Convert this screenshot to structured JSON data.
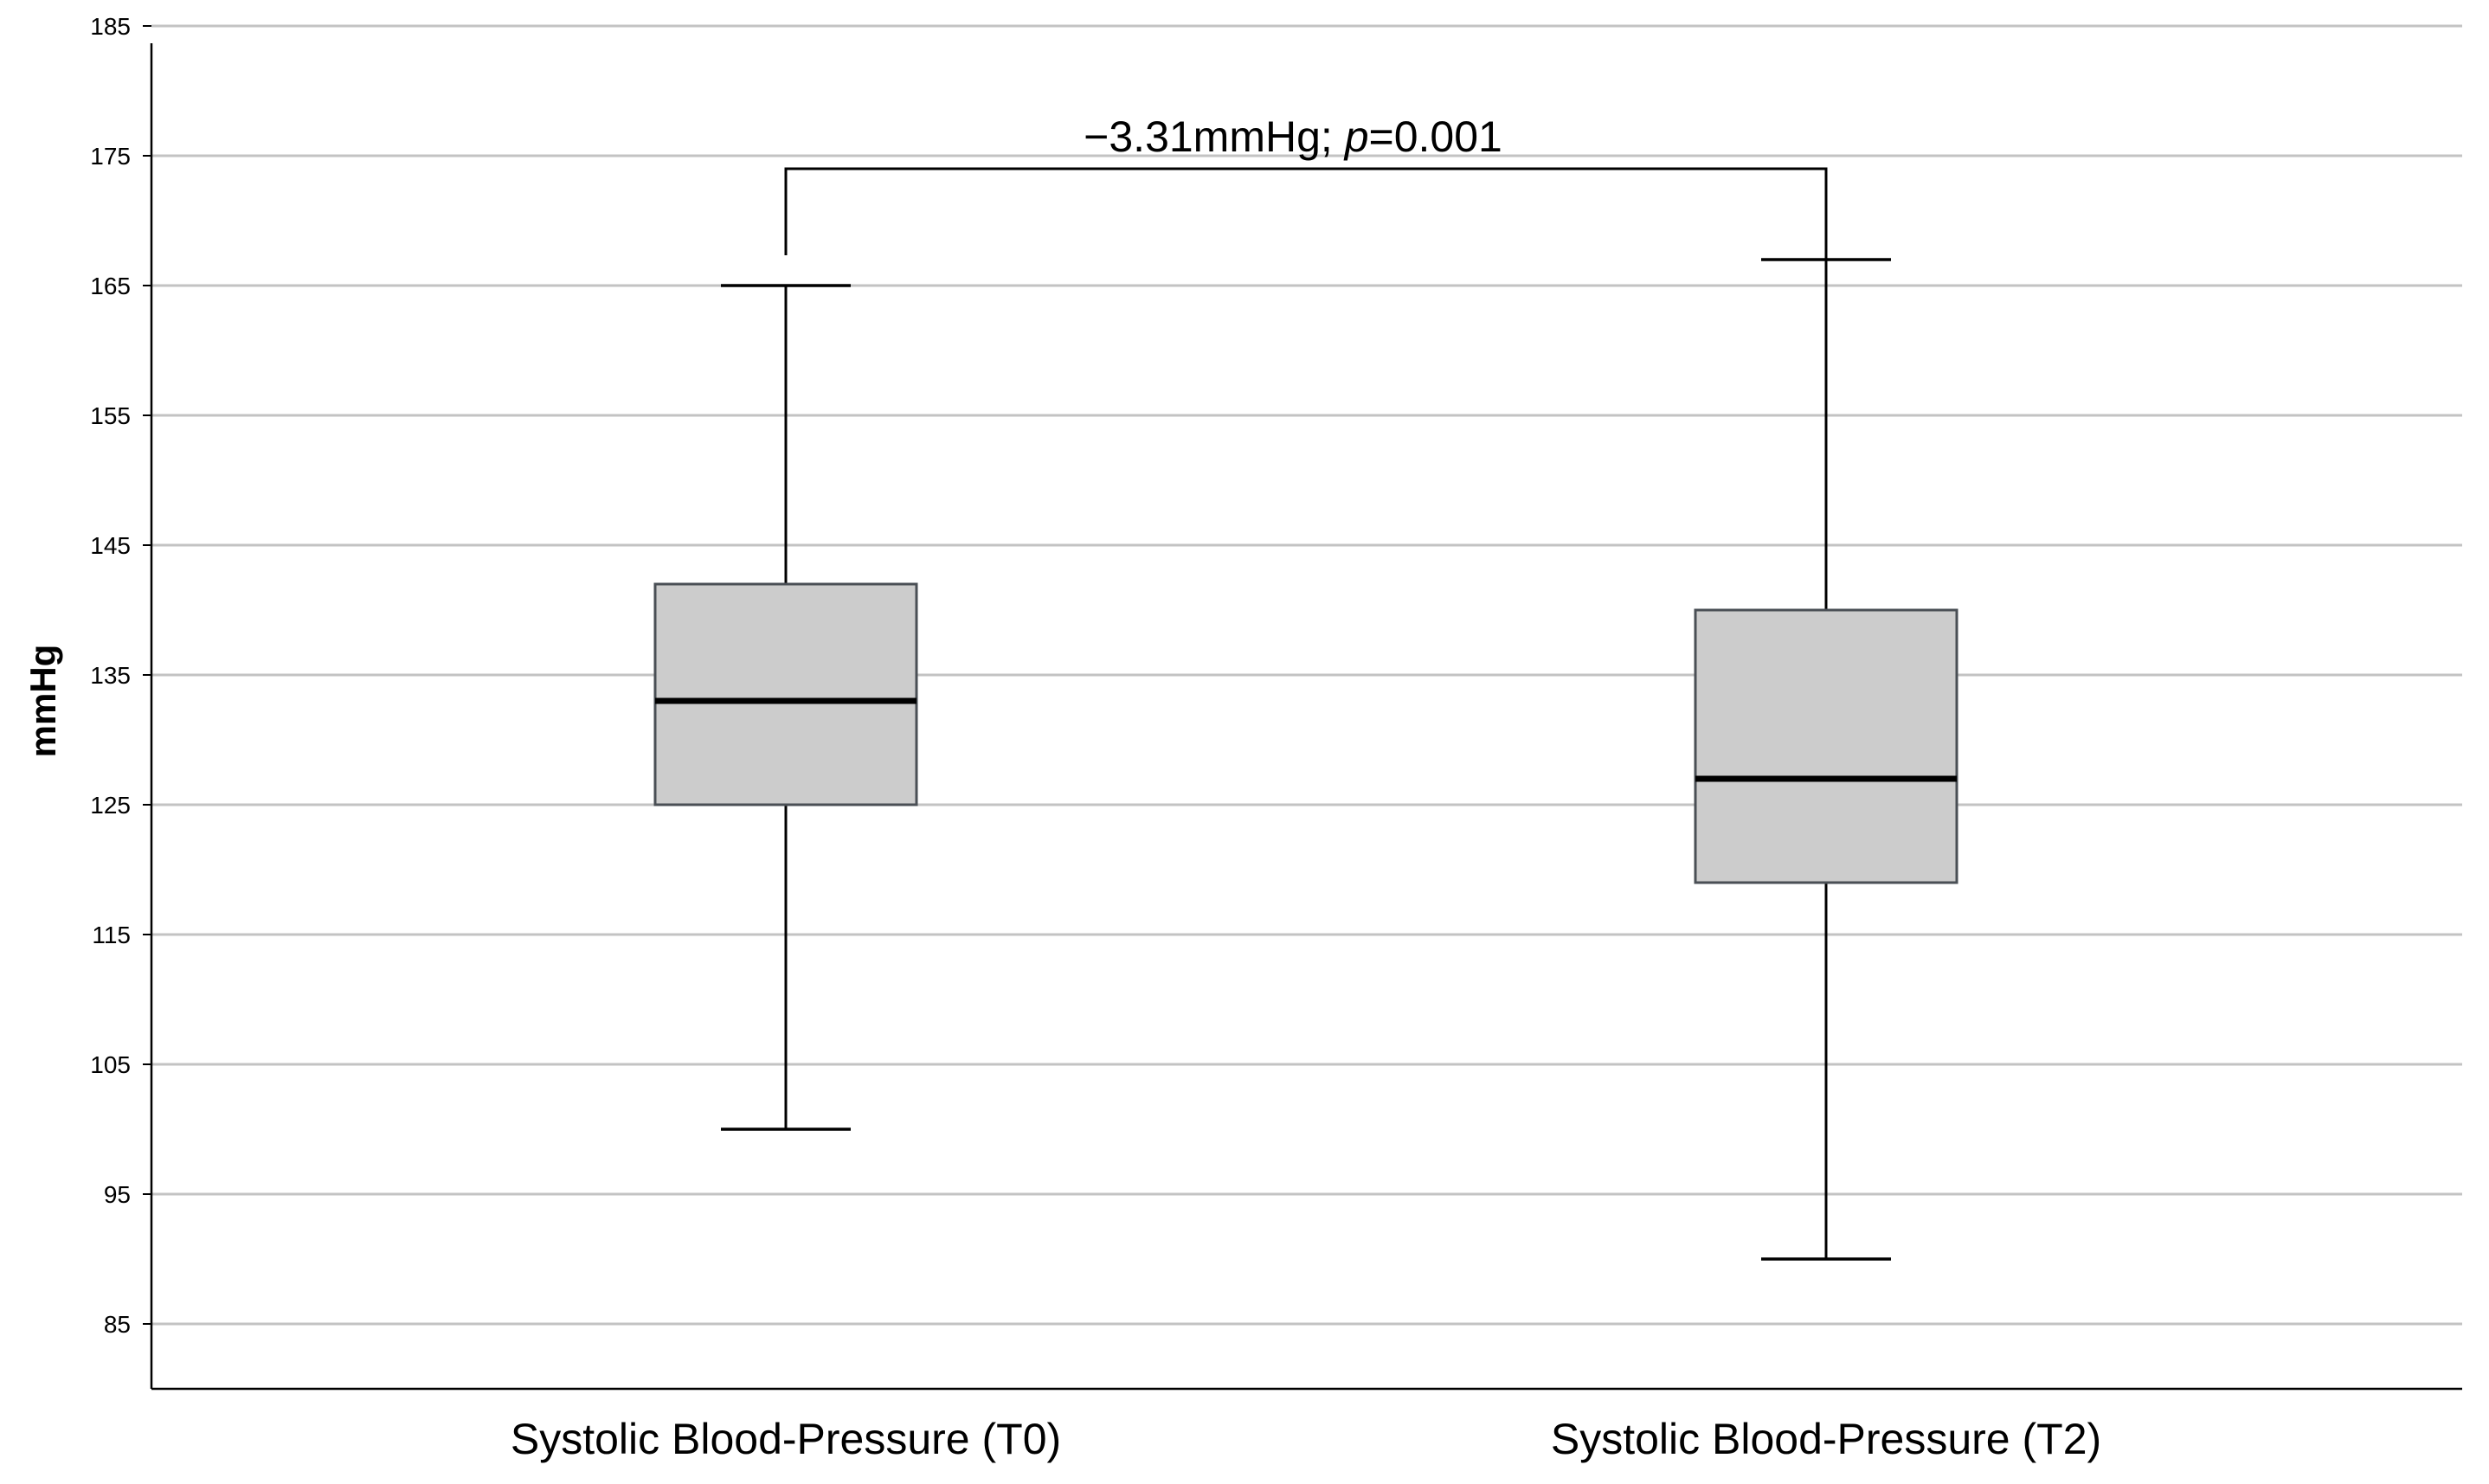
{
  "chart_data": {
    "type": "boxplot",
    "title": "",
    "xlabel": "",
    "ylabel": "mmHg",
    "ylim": [
      80,
      185
    ],
    "yticks": [
      85,
      95,
      105,
      115,
      125,
      135,
      145,
      155,
      165,
      175,
      185
    ],
    "grid": true,
    "categories": [
      "Systolic Blood-Pressure (T0)",
      "Systolic Blood-Pressure (T2)"
    ],
    "series": [
      {
        "name": "Systolic Blood-Pressure (T0)",
        "whisker_low": 100,
        "q1": 125,
        "median": 133,
        "q3": 142,
        "whisker_high": 165
      },
      {
        "name": "Systolic Blood-Pressure (T2)",
        "whisker_low": 90,
        "q1": 119,
        "median": 127,
        "q3": 140,
        "whisker_high": 167
      }
    ],
    "annotation": {
      "prefix": "−3.31mmHg; ",
      "italic": "p",
      "suffix": "=0.001",
      "bracket_between": [
        0,
        1
      ],
      "bracket_level": 174
    },
    "colors": {
      "box_fill": "#cccccc",
      "box_edge": "#4a4f55",
      "median": "#000000",
      "whisker": "#000000",
      "grid": "#c3c3c3",
      "axis": "#000000"
    }
  }
}
